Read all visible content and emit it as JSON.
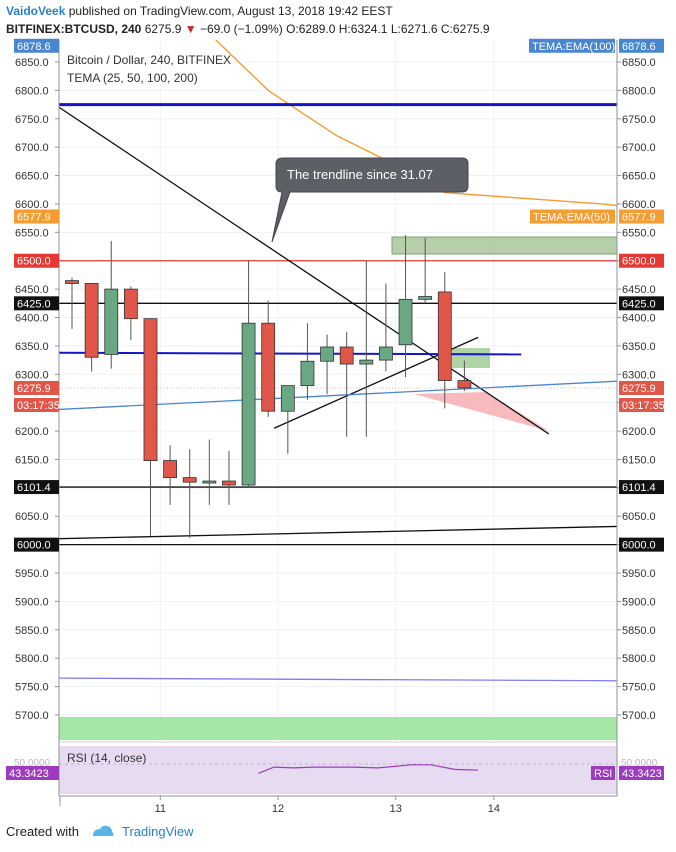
{
  "header": {
    "author": "VaidoVeek",
    "published_text": "published on TradingView.com, August 13, 2018 19:42 EEST",
    "symbol": "BITFINEX:BTCUSD, 240",
    "last": "6275.9",
    "change": "−69.0 (−1.09%)",
    "open_label": "O:",
    "open": "6289.0",
    "high_label": "H:",
    "high": "6324.1",
    "low_label": "L:",
    "low": "6271.6",
    "close_label": "C:",
    "close": "6275.9"
  },
  "footer": {
    "created_with": "Created with",
    "brand": "TradingView"
  },
  "colors": {
    "up": "#6aa884",
    "down": "#e05648",
    "ema50": "#f59c32",
    "hline_blue": "#1515c8",
    "red_line": "#e53935",
    "steel_line": "#4a86d0",
    "rsi_band": "#e7dbf2",
    "rsi_line": "#9c3bbd"
  },
  "chart_data": {
    "type": "candlestick",
    "title": "Bitcoin / Dollar, 240, BITFINEX",
    "subtitle": "TEMA (25, 50, 100, 200)",
    "ylim": [
      5650,
      6900
    ],
    "y_ticks": [
      5700,
      5750,
      5800,
      5850,
      5900,
      5950,
      6000,
      6050,
      6100,
      6150,
      6200,
      6250,
      6300,
      6350,
      6400,
      6450,
      6500,
      6550,
      6600,
      6650,
      6700,
      6750,
      6800,
      6850
    ],
    "x_ticks": [
      {
        "label": "11",
        "i": 4.5
      },
      {
        "label": "12",
        "i": 10.5
      },
      {
        "label": "13",
        "i": 16.5
      },
      {
        "label": "14",
        "i": 21.5
      }
    ],
    "candles": [
      {
        "o": 6465,
        "h": 6470,
        "l": 6380,
        "c": 6460
      },
      {
        "o": 6460,
        "h": 6460,
        "l": 6305,
        "c": 6330
      },
      {
        "o": 6335,
        "h": 6535,
        "l": 6310,
        "c": 6450
      },
      {
        "o": 6450,
        "h": 6455,
        "l": 6360,
        "c": 6398
      },
      {
        "o": 6398,
        "h": 6398,
        "l": 6015,
        "c": 6148
      },
      {
        "o": 6148,
        "h": 6175,
        "l": 6070,
        "c": 6118
      },
      {
        "o": 6118,
        "h": 6168,
        "l": 6012,
        "c": 6110
      },
      {
        "o": 6110,
        "h": 6185,
        "l": 6070,
        "c": 6112
      },
      {
        "o": 6112,
        "h": 6165,
        "l": 6070,
        "c": 6105
      },
      {
        "o": 6105,
        "h": 6500,
        "l": 6100,
        "c": 6390
      },
      {
        "o": 6390,
        "h": 6430,
        "l": 6225,
        "c": 6235
      },
      {
        "o": 6235,
        "h": 6275,
        "l": 6160,
        "c": 6280
      },
      {
        "o": 6280,
        "h": 6390,
        "l": 6255,
        "c": 6323
      },
      {
        "o": 6323,
        "h": 6370,
        "l": 6265,
        "c": 6348
      },
      {
        "o": 6348,
        "h": 6375,
        "l": 6190,
        "c": 6318
      },
      {
        "o": 6318,
        "h": 6500,
        "l": 6190,
        "c": 6325
      },
      {
        "o": 6325,
        "h": 6460,
        "l": 6305,
        "c": 6348
      },
      {
        "o": 6352,
        "h": 6545,
        "l": 6295,
        "c": 6432
      },
      {
        "o": 6432,
        "h": 6540,
        "l": 6425,
        "c": 6437
      },
      {
        "o": 6445,
        "h": 6480,
        "l": 6240,
        "c": 6289
      },
      {
        "o": 6289,
        "h": 6324,
        "l": 6271,
        "c": 6276
      }
    ],
    "ema50": [
      [
        7,
        6900
      ],
      [
        10,
        6800
      ],
      [
        13.5,
        6720
      ],
      [
        17,
        6660
      ],
      [
        19,
        6620
      ],
      [
        23,
        6610
      ],
      [
        27,
        6600
      ],
      [
        31,
        6585
      ],
      [
        34.5,
        6578
      ]
    ],
    "horizontal_levels": [
      {
        "value": 6878.6,
        "label": "TEMA:EMA(100)",
        "color": "#4a86d0"
      },
      {
        "value": 6775,
        "color": "#1515c8"
      },
      {
        "value": 6577.9,
        "label": "TEMA:EMA(50)",
        "color": "#f59c32"
      },
      {
        "value": 6500.0,
        "color": "#e53935"
      },
      {
        "value": 6425.0,
        "color": "#111111"
      },
      {
        "value": 6275.9,
        "color": "#e53935"
      },
      {
        "value": 6101.4,
        "color": "#111111"
      },
      {
        "value": 6000.0,
        "color": "#111111"
      }
    ],
    "price_tags": [
      "6878.6",
      "6577.9",
      "6500.0",
      "6425.0",
      "6275.9",
      "03:17:35",
      "6101.4",
      "6000.0"
    ],
    "trend_lines": [
      {
        "from": [
          -1.3,
          6785
        ],
        "to": [
          24.3,
          6195
        ],
        "color": "#111111"
      },
      {
        "from": [
          10.3,
          6205
        ],
        "to": [
          20.7,
          6365
        ],
        "color": "#111111"
      },
      {
        "from": [
          -1.3,
          6010
        ],
        "to": [
          29,
          6033
        ],
        "color": "#111111"
      },
      {
        "from": [
          -1.3,
          6237
        ],
        "to": [
          29,
          6290
        ],
        "color": "#4a86d0"
      },
      {
        "from": [
          -1.3,
          6338
        ],
        "to": [
          22.9,
          6335
        ],
        "color": "#1515c8"
      },
      {
        "from": [
          -1.3,
          5765
        ],
        "to": [
          29,
          5760
        ],
        "color": "#7b7ff0"
      }
    ],
    "annotation": "The trendline since 31.07",
    "rsi": {
      "label": "RSI (14, close)",
      "value": "43.3423",
      "tag": "RSI",
      "top_level": "50.0000",
      "series": [
        [
          9.5,
          44
        ],
        [
          10.3,
          48
        ],
        [
          11.3,
          47.5
        ],
        [
          12.3,
          48
        ],
        [
          14.3,
          48
        ],
        [
          15.6,
          47.5
        ],
        [
          17.3,
          49.5
        ],
        [
          18.3,
          49.5
        ],
        [
          19.5,
          46.5
        ],
        [
          20.7,
          46
        ]
      ]
    }
  }
}
